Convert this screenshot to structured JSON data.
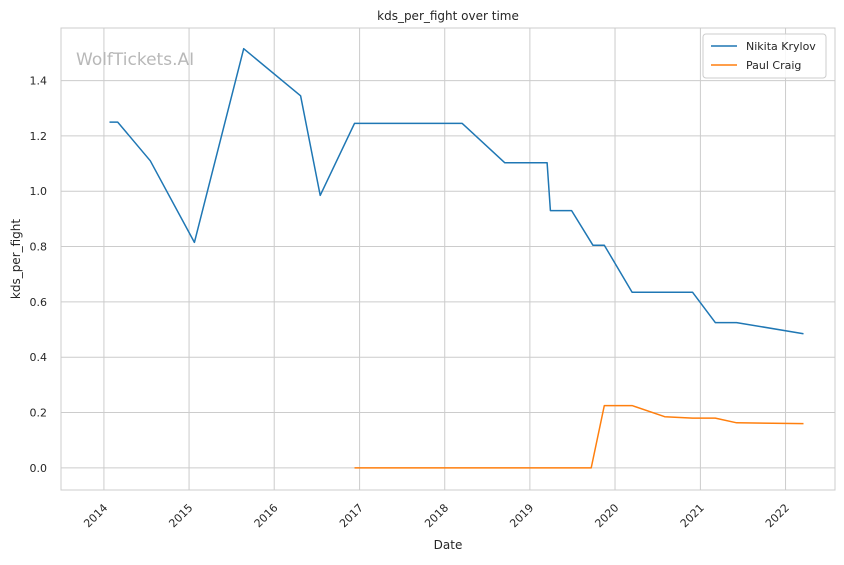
{
  "watermark": "WolfTickets.AI",
  "chart_data": {
    "type": "line",
    "title": "kds_per_fight over time",
    "xlabel": "Date",
    "ylabel": "kds_per_fight",
    "xlim": [
      "2013-07-01",
      "2022-08-01"
    ],
    "ylim": [
      -0.08,
      1.59
    ],
    "x_ticks": [
      "2014-01-01",
      "2015-01-01",
      "2016-01-01",
      "2017-01-01",
      "2018-01-01",
      "2019-01-01",
      "2020-01-01",
      "2021-01-01",
      "2022-01-01"
    ],
    "x_tick_labels": [
      "2014",
      "2015",
      "2016",
      "2017",
      "2018",
      "2019",
      "2020",
      "2021",
      "2022"
    ],
    "y_ticks": [
      0.0,
      0.2,
      0.4,
      0.6,
      0.8,
      1.0,
      1.2,
      1.4
    ],
    "y_tick_labels": [
      "0.0",
      "0.2",
      "0.4",
      "0.6",
      "0.8",
      "1.0",
      "1.2",
      "1.4"
    ],
    "grid": true,
    "legend_position": "top-right",
    "series": [
      {
        "name": "Nikita Krylov",
        "color": "#1f77b4",
        "points": [
          [
            "2014-01-25",
            1.25
          ],
          [
            "2014-03-01",
            1.25
          ],
          [
            "2014-07-19",
            1.11
          ],
          [
            "2015-01-24",
            0.815
          ],
          [
            "2015-08-23",
            1.515
          ],
          [
            "2016-04-23",
            1.345
          ],
          [
            "2016-07-16",
            0.985
          ],
          [
            "2016-12-10",
            1.245
          ],
          [
            "2018-03-17",
            1.245
          ],
          [
            "2018-09-15",
            1.103
          ],
          [
            "2019-03-16",
            1.103
          ],
          [
            "2019-03-30",
            0.93
          ],
          [
            "2019-06-29",
            0.93
          ],
          [
            "2019-09-28",
            0.805
          ],
          [
            "2019-11-16",
            0.805
          ],
          [
            "2020-03-14",
            0.635
          ],
          [
            "2020-11-28",
            0.635
          ],
          [
            "2021-03-06",
            0.525
          ],
          [
            "2021-06-05",
            0.525
          ],
          [
            "2022-03-19",
            0.485
          ]
        ]
      },
      {
        "name": "Paul Craig",
        "color": "#ff7f0e",
        "points": [
          [
            "2016-12-10",
            0.0
          ],
          [
            "2019-09-21",
            0.0
          ],
          [
            "2019-11-16",
            0.225
          ],
          [
            "2020-03-14",
            0.225
          ],
          [
            "2020-08-01",
            0.185
          ],
          [
            "2020-11-28",
            0.18
          ],
          [
            "2021-03-06",
            0.18
          ],
          [
            "2021-06-05",
            0.163
          ],
          [
            "2022-03-19",
            0.16
          ]
        ]
      }
    ]
  }
}
